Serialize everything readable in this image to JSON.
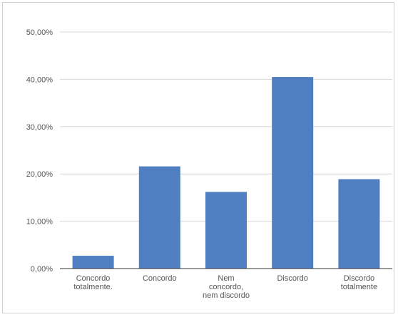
{
  "chart_data": {
    "type": "bar",
    "categories": [
      [
        "Concordo",
        "totalmente."
      ],
      [
        "Concordo"
      ],
      [
        "Nem",
        "concordo,",
        "nem discordo"
      ],
      [
        "Discordo"
      ],
      [
        "Discordo",
        "totalmente"
      ]
    ],
    "values": [
      2.7,
      21.6,
      16.2,
      40.5,
      18.9
    ],
    "y_ticks": [
      "0,00%",
      "10,00%",
      "20,00%",
      "30,00%",
      "40,00%",
      "50,00%"
    ],
    "ylim": [
      0,
      50
    ],
    "grid": true,
    "legend": "none",
    "colors": {
      "bar": "#4f7fc0",
      "grid": "#d9d9d9",
      "axis": "#333333"
    }
  }
}
